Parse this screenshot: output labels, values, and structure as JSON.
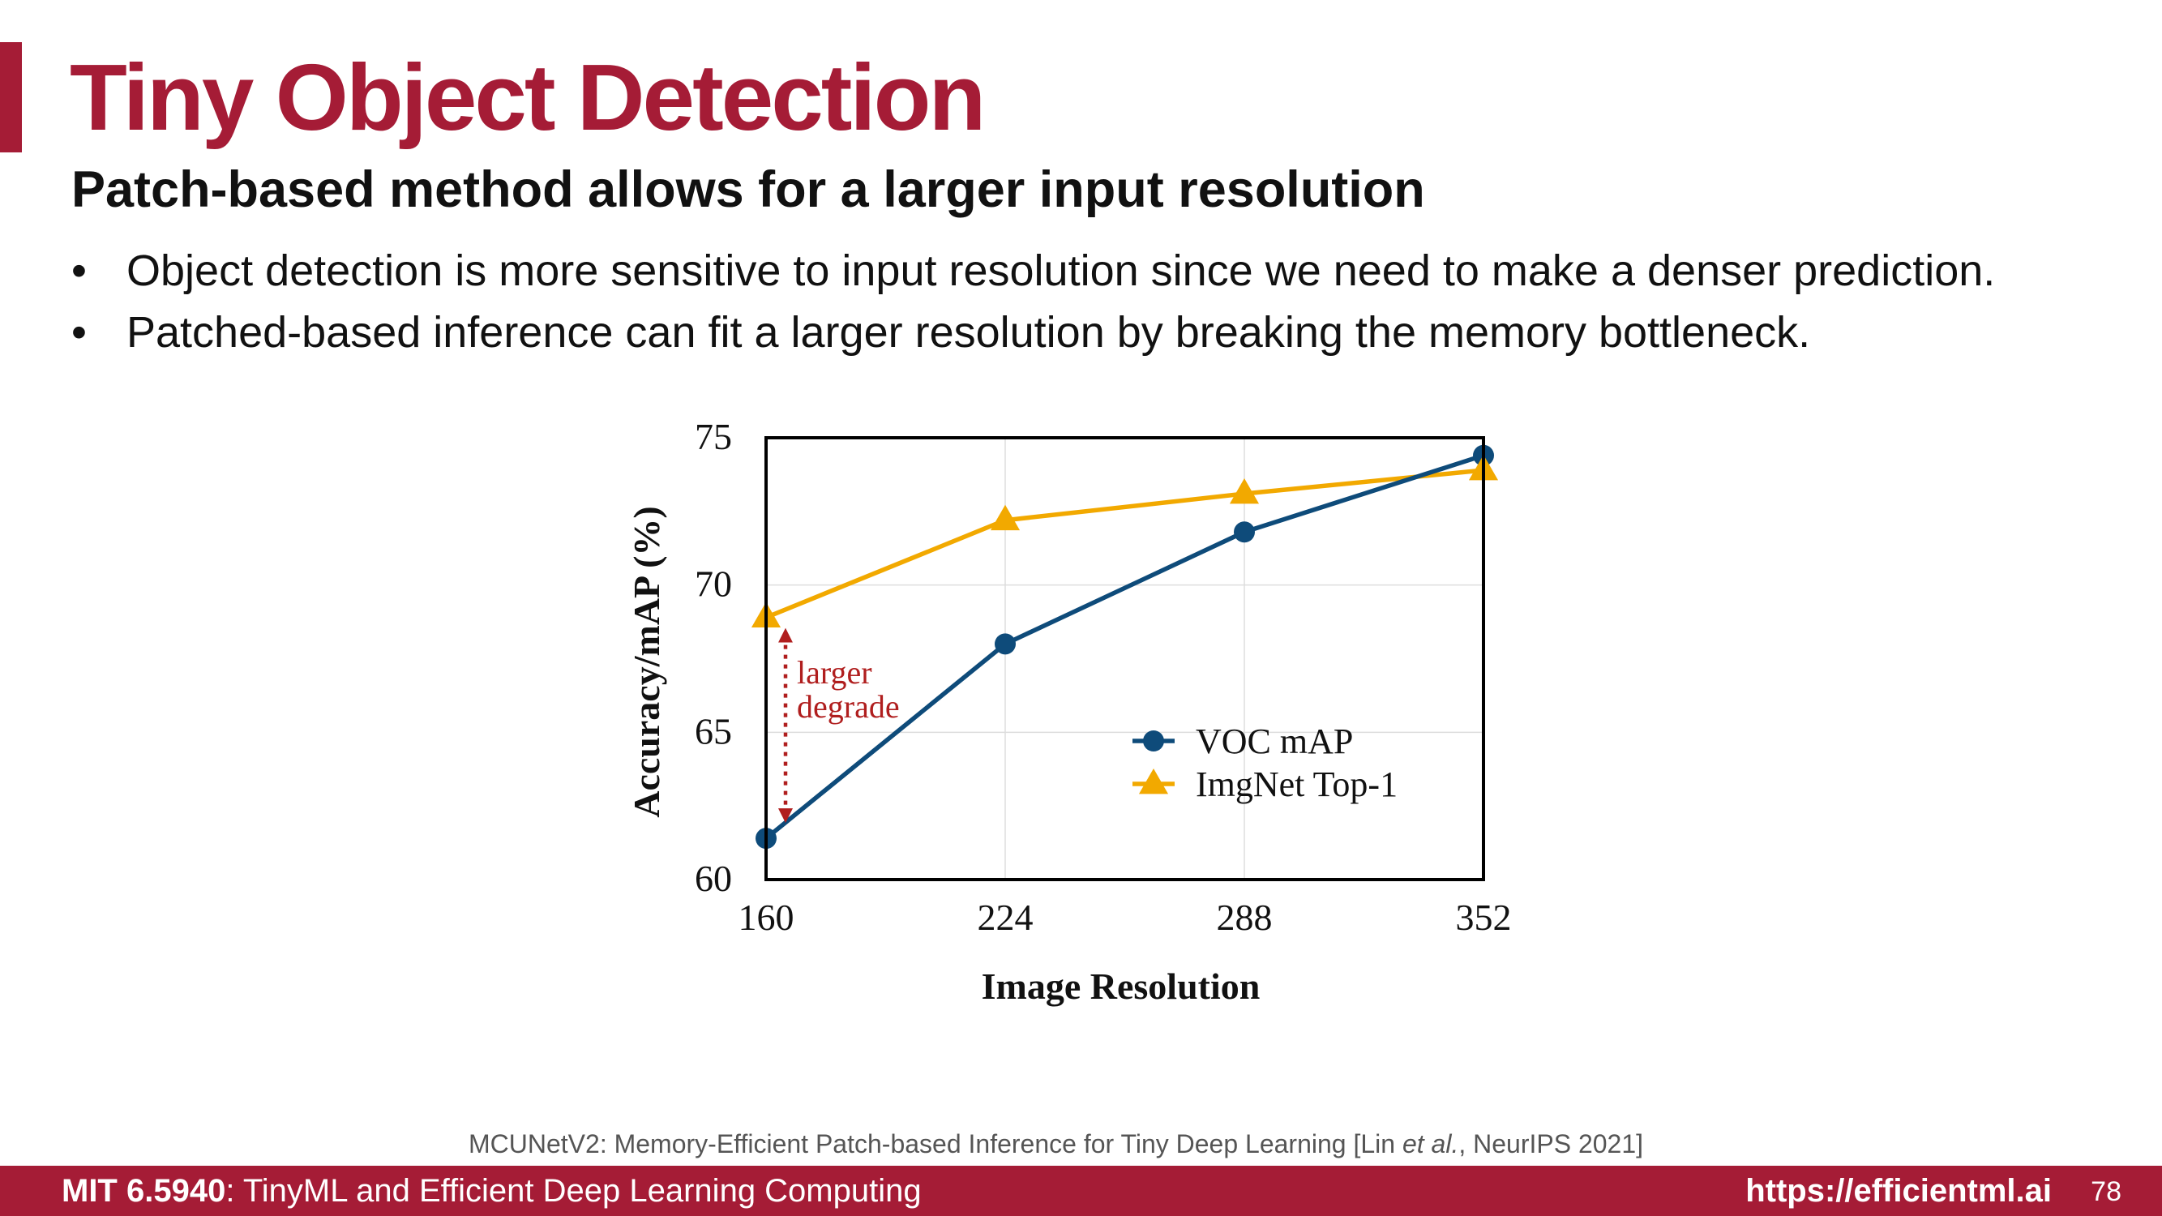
{
  "slide": {
    "title": "Tiny Object Detection",
    "subtitle": "Patch-based method allows for a larger input resolution",
    "bullets": [
      "Object detection is more sensitive to input resolution since we need to make a denser prediction.",
      "Patched-based inference can fit a larger resolution by breaking the memory bottleneck."
    ],
    "bullet_marker": "•",
    "citation": {
      "before": "MCUNetV2: Memory-Efficient Patch-based Inference for Tiny Deep Learning [Lin ",
      "italic": "et al.",
      "after": ", NeurIPS 2021]"
    }
  },
  "footer": {
    "course_code": "MIT 6.5940",
    "course_name": ": TinyML and Efficient Deep Learning Computing",
    "url": "https://efficientml.ai",
    "page": "78"
  },
  "chart_data": {
    "type": "line",
    "x": [
      160,
      224,
      288,
      352
    ],
    "series": [
      {
        "name": "VOC mAP",
        "values": [
          61.4,
          68.0,
          71.8,
          74.4
        ],
        "color": "#0e4b7a",
        "marker": "circle"
      },
      {
        "name": "ImgNet Top-1",
        "values": [
          68.9,
          72.2,
          73.1,
          73.9
        ],
        "color": "#f2a900",
        "marker": "triangle"
      }
    ],
    "xlabel": "Image Resolution",
    "ylabel": "Accuracy/mAP (%)",
    "xlim": [
      160,
      352
    ],
    "ylim": [
      60,
      75
    ],
    "xticks": [
      160,
      224,
      288,
      352
    ],
    "yticks": [
      60,
      65,
      70,
      75
    ],
    "grid": true,
    "legend": "center-right",
    "annotation": {
      "lines": [
        "larger",
        "degrade"
      ],
      "x": 160,
      "y_from": 61.4,
      "y_to": 68.9,
      "color": "#b01e1e"
    }
  }
}
